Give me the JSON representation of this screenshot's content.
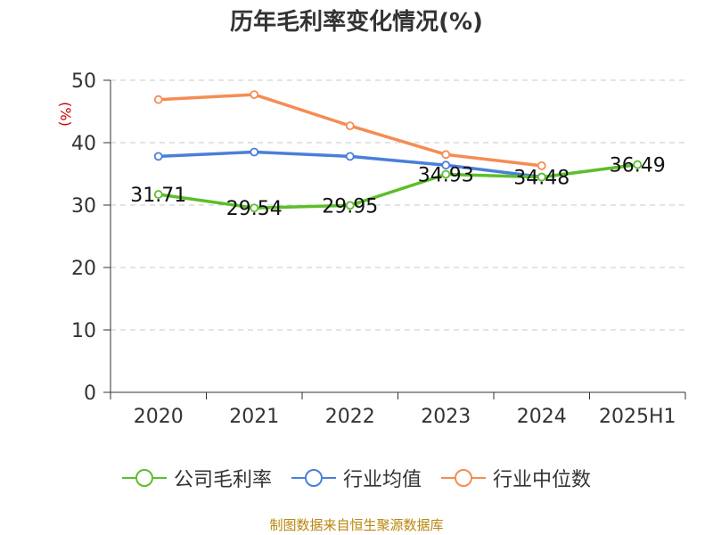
{
  "chart_data": {
    "type": "line",
    "title": "历年毛利率变化情况(%)",
    "ylabel": "(%)",
    "xlabel": "",
    "categories": [
      "2020",
      "2021",
      "2022",
      "2023",
      "2024",
      "2025H1"
    ],
    "ylim": [
      0,
      50
    ],
    "yticks": [
      0,
      10,
      20,
      30,
      40,
      50
    ],
    "grid": true,
    "legend_position": "bottom",
    "series": [
      {
        "name": "公司毛利率",
        "color": "#5cbf2a",
        "values": [
          31.71,
          29.54,
          29.95,
          34.93,
          34.48,
          36.49
        ],
        "labels": [
          "31.71",
          "29.54",
          "29.95",
          "34.93",
          "34.48",
          "36.49"
        ]
      },
      {
        "name": "行业均值",
        "color": "#4a7fd9",
        "values": [
          37.8,
          38.5,
          37.8,
          36.4,
          34.5,
          null
        ]
      },
      {
        "name": "行业中位数",
        "color": "#f58c54",
        "values": [
          46.9,
          47.7,
          42.7,
          38.1,
          36.3,
          null
        ]
      }
    ]
  },
  "source": "制图数据来自恒生聚源数据库"
}
